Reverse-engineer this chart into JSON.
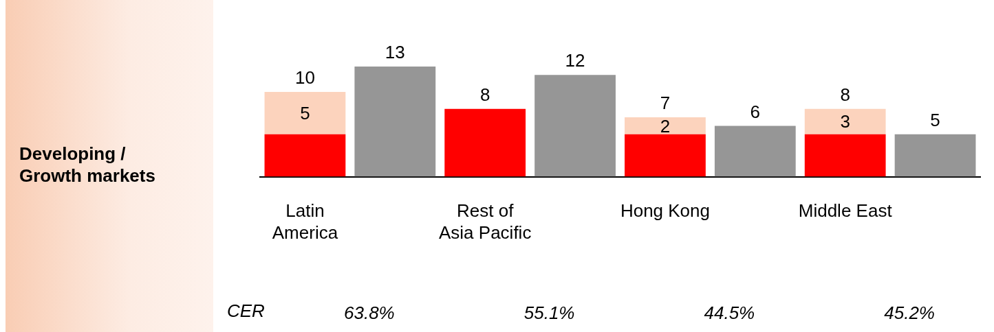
{
  "chart_data": {
    "type": "bar",
    "title": "Developing / Growth markets",
    "categories": [
      "Latin\nAmerica",
      null,
      "Rest of\nAsia Pacific",
      null,
      "Hong Kong",
      null,
      "Middle East",
      null
    ],
    "stacked": true,
    "legend": false,
    "grid": false,
    "series": [
      {
        "color": "#ff0000",
        "values": [
          5,
          null,
          8,
          null,
          5,
          null,
          5,
          null
        ],
        "value_labels": [
          null,
          null,
          "8",
          null,
          null,
          null,
          null,
          null
        ]
      },
      {
        "color": "#fcd3bd",
        "values": [
          5,
          null,
          null,
          null,
          2,
          null,
          3,
          null
        ],
        "value_labels": [
          "5",
          null,
          null,
          null,
          "2",
          null,
          "3",
          null
        ]
      },
      {
        "color": "#969696",
        "values": [
          null,
          13,
          null,
          12,
          null,
          6,
          null,
          5
        ],
        "value_labels": [
          null,
          "13",
          null,
          "12",
          null,
          "6",
          null,
          "5"
        ]
      }
    ],
    "totals": [
      "10",
      null,
      null,
      null,
      "7",
      null,
      "8",
      null
    ],
    "annotations": [
      "CER",
      "63.8%",
      "55.1%",
      "44.5%",
      "45.2%"
    ]
  }
}
